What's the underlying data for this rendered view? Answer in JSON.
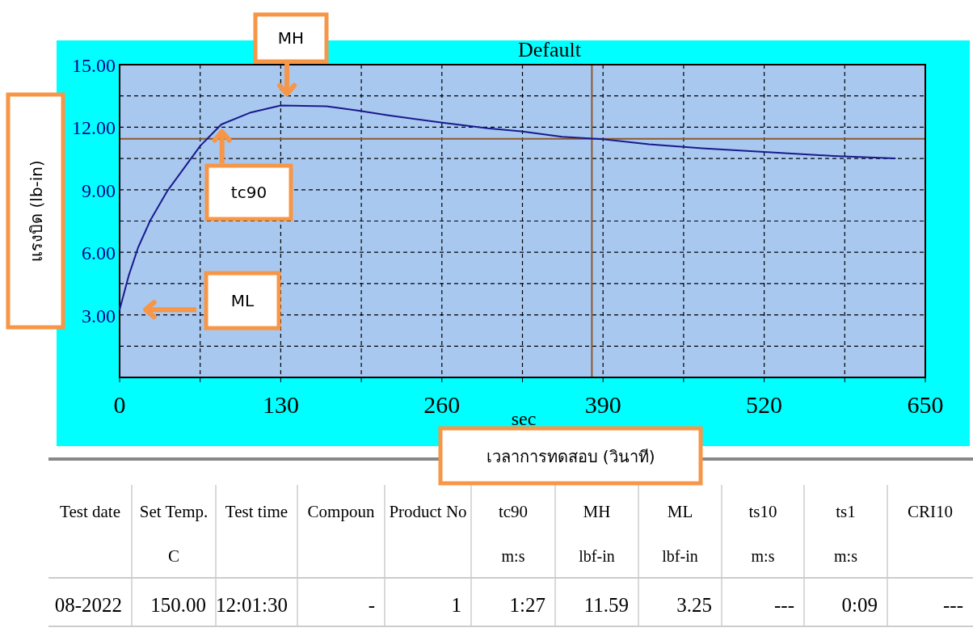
{
  "chart_data": {
    "type": "line",
    "title": "Default",
    "xlabel": "sec",
    "ylabel": "แรงบิด (lb-in)",
    "x": [
      0,
      7.5,
      15,
      25,
      38.7,
      52.4,
      65,
      82,
      105,
      130,
      167,
      192,
      217,
      259,
      297,
      324,
      357,
      390,
      427,
      470,
      520,
      576,
      626
    ],
    "series": [
      {
        "color": "#1a1a8c",
        "values": [
          3.25,
          4.91,
          6.24,
          7.56,
          8.96,
          10.07,
          11.1,
          12.13,
          12.69,
          13.04,
          13.0,
          12.8,
          12.57,
          12.23,
          11.95,
          11.8,
          11.54,
          11.42,
          11.18,
          10.99,
          10.81,
          10.62,
          10.5
        ]
      }
    ],
    "xlim": [
      0,
      650
    ],
    "ylim": [
      0,
      15
    ],
    "xticks": [
      0,
      {
        "value": 65,
        "label": null
      },
      130,
      {
        "value": 195,
        "label": null
      },
      260,
      {
        "value": 325,
        "label": null
      },
      390,
      {
        "value": 455,
        "label": null
      },
      520,
      {
        "value": 585,
        "label": null
      },
      650
    ],
    "yticks": [
      {
        "value": 0,
        "label": null
      },
      {
        "value": 1.5,
        "label": null
      },
      {
        "value": 3,
        "label": "3.00"
      },
      {
        "value": 4.5,
        "label": null
      },
      {
        "value": 6,
        "label": "6.00"
      },
      {
        "value": 7.5,
        "label": null
      },
      {
        "value": 9,
        "label": "9.00"
      },
      {
        "value": 10.5,
        "label": null
      },
      {
        "value": 12,
        "label": "12.00"
      },
      {
        "value": 13.5,
        "label": null
      },
      {
        "value": 15,
        "label": "15.00"
      }
    ],
    "grid": true,
    "ref_lines": [
      {
        "axis": "y",
        "value": 11.44,
        "color": "#8b5a2b"
      },
      {
        "axis": "x",
        "value": 381,
        "color": "#8b5a2b"
      }
    ],
    "annotations": [
      "MH",
      "tc90",
      "ML",
      "เวลาการทดสอบ (วินาที)",
      "Test date",
      "Set Temp.",
      "Test time",
      "Compoun",
      "Product No",
      "tc90",
      "MH",
      "ML",
      "ts10",
      "ts1",
      "CRI10",
      null,
      "C",
      null,
      null,
      null,
      "m:s",
      "lbf-in",
      "lbf-in",
      "m:s",
      "m:s",
      null,
      "08-2022",
      "150.00",
      "12:01:30",
      "-",
      "1",
      "1:27",
      "11.59",
      "3.25",
      "---",
      "0:09",
      "---"
    ]
  }
}
